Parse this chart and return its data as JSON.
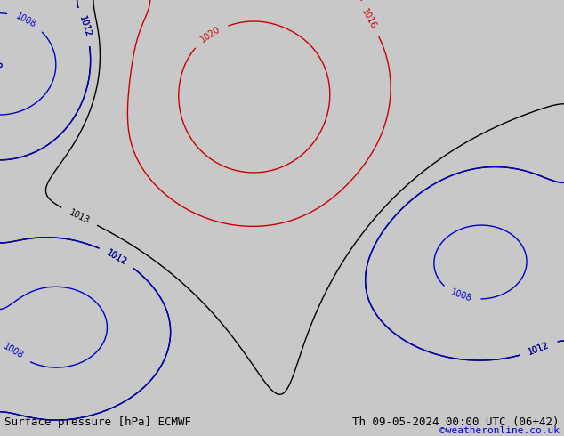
{
  "title_left": "Surface pressure [hPa] ECMWF",
  "title_right": "Th 09-05-2024 00:00 UTC (06+42)",
  "credit": "©weatheronline.co.uk",
  "bg_color": "#d0d0d0",
  "land_color": "#b8d8a0",
  "ocean_color": "#d8d8d8",
  "fig_width": 6.34,
  "fig_height": 4.9,
  "dpi": 100,
  "title_fontsize": 9,
  "credit_fontsize": 8,
  "credit_color": "#0000cc"
}
